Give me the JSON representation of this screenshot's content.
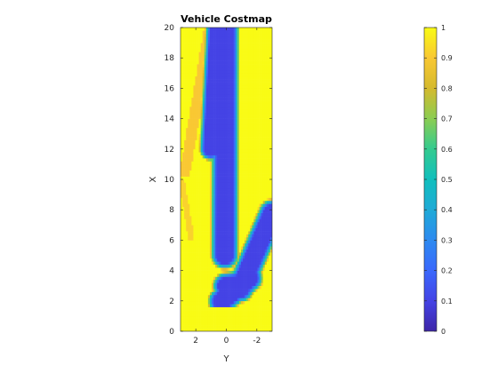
{
  "chart_data": {
    "type": "heatmap",
    "title": "Vehicle Costmap",
    "xlabel": "Y",
    "ylabel": "X",
    "x_range": [
      3,
      -3
    ],
    "y_range": [
      0,
      20
    ],
    "x_ticks": [
      2,
      0,
      -2
    ],
    "y_ticks": [
      0,
      2,
      4,
      6,
      8,
      10,
      12,
      14,
      16,
      18,
      20
    ],
    "colorbar": {
      "range": [
        0,
        1
      ],
      "ticks": [
        0,
        0.1,
        0.2,
        0.3,
        0.4,
        0.5,
        0.6,
        0.7,
        0.8,
        0.9,
        1
      ],
      "colormap": "parula"
    },
    "grid": false,
    "description_values": {
      "free_space_cost": 1,
      "low_cost_corridor_cost": 0.1
    }
  }
}
